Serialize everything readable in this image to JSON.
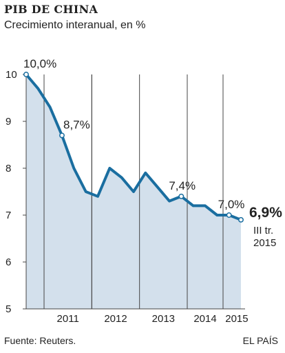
{
  "chart_data": {
    "type": "area",
    "title": "PIB DE CHINA",
    "subtitle": "Crecimiento interanual, en %",
    "ylim": [
      5,
      10
    ],
    "yticks": [
      "5",
      "6",
      "7",
      "8",
      "9",
      "10"
    ],
    "xticks": [
      "2011",
      "2012",
      "2013",
      "2014",
      "2015"
    ],
    "series": [
      {
        "x": [
          0,
          1,
          2,
          3,
          4,
          5,
          6,
          7,
          8,
          9,
          10,
          11,
          12,
          13,
          14,
          15,
          16,
          17,
          18
        ],
        "values": [
          10.0,
          9.7,
          9.3,
          8.7,
          8.0,
          7.5,
          7.4,
          8.0,
          7.8,
          7.5,
          7.9,
          7.6,
          7.3,
          7.4,
          7.2,
          7.2,
          7.0,
          7.0,
          6.9
        ]
      }
    ],
    "annotations": [
      {
        "index": 0,
        "text": "10,0%"
      },
      {
        "index": 3,
        "text": "8,7%"
      },
      {
        "index": 13,
        "text": "7,4%"
      },
      {
        "index": 17,
        "text": "7,0%"
      },
      {
        "index": 18,
        "text": "6,9%"
      }
    ],
    "last_note": [
      "III tr.",
      "2015"
    ],
    "colors": {
      "line": "#1a6ea0",
      "fill": "#d3e0ec",
      "grid": "#444444"
    }
  },
  "footer": {
    "source": "Fuente: Reuters.",
    "brand": "EL PAÍS"
  }
}
